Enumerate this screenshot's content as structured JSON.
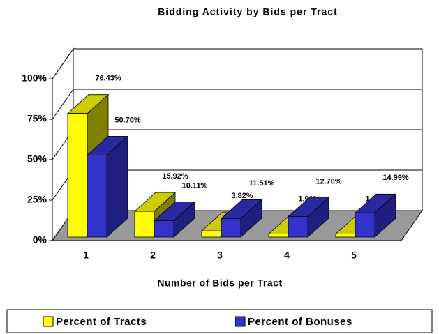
{
  "chart_data": {
    "type": "bar3d",
    "title": "Bidding Activity by Bids per Tract",
    "x_label": "Number of Bids per Tract",
    "categories": [
      "1",
      "2",
      "3",
      "4",
      "5"
    ],
    "series": [
      {
        "name": "Percent of Tracts",
        "color": "#ffff00",
        "values": [
          76.43,
          15.92,
          3.82,
          1.91,
          1.91
        ],
        "value_labels": [
          "76.43%",
          "15.92%",
          "3.82%",
          "1.91%",
          "1.91%"
        ]
      },
      {
        "name": "Percent of Bonuses",
        "color": "#3333cc",
        "values": [
          50.7,
          10.11,
          11.51,
          12.7,
          14.99
        ],
        "value_labels": [
          "50.70%",
          "10.11%",
          "11.51%",
          "12.70%",
          "14.99%"
        ]
      }
    ],
    "ylim": [
      0,
      100
    ],
    "yticks": [
      {
        "value": 0,
        "label": "0%"
      },
      {
        "value": 25,
        "label": "25%"
      },
      {
        "value": 50,
        "label": "50%"
      },
      {
        "value": 75,
        "label": "75%"
      },
      {
        "value": 100,
        "label": "100%"
      }
    ],
    "grid": true
  }
}
